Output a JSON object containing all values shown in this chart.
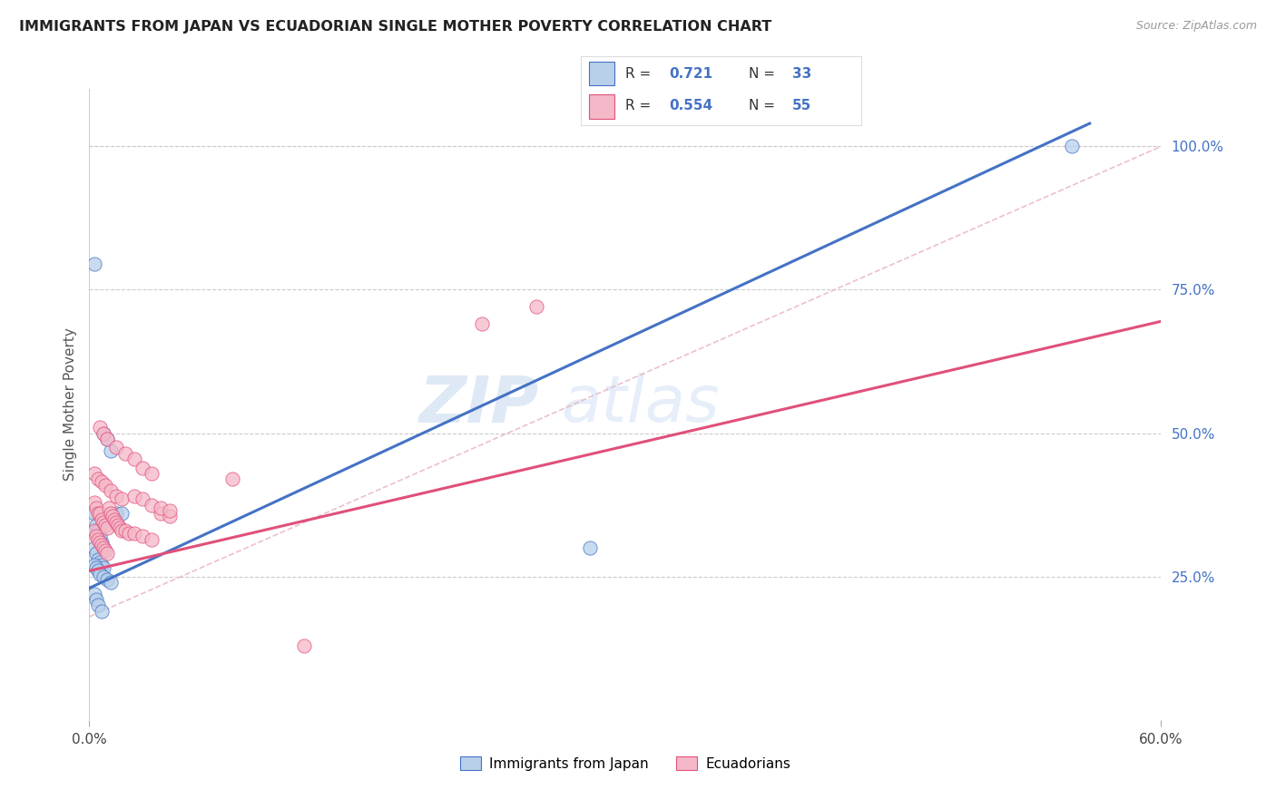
{
  "title": "IMMIGRANTS FROM JAPAN VS ECUADORIAN SINGLE MOTHER POVERTY CORRELATION CHART",
  "source": "Source: ZipAtlas.com",
  "ylabel": "Single Mother Poverty",
  "legend_label1": "Immigrants from Japan",
  "legend_label2": "Ecuadorians",
  "r1": "0.721",
  "n1": "33",
  "r2": "0.554",
  "n2": "55",
  "right_yticks": [
    "100.0%",
    "75.0%",
    "50.0%",
    "25.0%"
  ],
  "right_ytick_vals": [
    1.0,
    0.75,
    0.5,
    0.25
  ],
  "color_japan_fill": "#b8d0ea",
  "color_ecuador_fill": "#f5b8c8",
  "color_japan_line": "#4472c4",
  "color_ecuador_line": "#e0507a",
  "color_diag": "#e8b0c0",
  "xlim": [
    0.0,
    0.6
  ],
  "ylim": [
    0.0,
    1.1
  ],
  "japan_line_x": [
    0.0,
    0.56
  ],
  "japan_line_y": [
    0.23,
    1.04
  ],
  "ecuador_line_x": [
    0.0,
    0.6
  ],
  "ecuador_line_y": [
    0.26,
    0.695
  ],
  "diag_line_x": [
    0.0,
    0.6
  ],
  "diag_line_y": [
    0.18,
    1.0
  ],
  "japan_scatter_x": [
    0.003,
    0.004,
    0.005,
    0.006,
    0.007,
    0.008,
    0.003,
    0.005,
    0.007,
    0.008,
    0.003,
    0.004,
    0.005,
    0.006,
    0.008,
    0.01,
    0.012,
    0.015,
    0.018,
    0.003,
    0.004,
    0.005,
    0.006,
    0.008,
    0.01,
    0.012,
    0.003,
    0.004,
    0.005,
    0.007,
    0.28,
    0.55,
    0.003
  ],
  "japan_scatter_y": [
    0.3,
    0.29,
    0.28,
    0.275,
    0.27,
    0.265,
    0.33,
    0.32,
    0.31,
    0.3,
    0.36,
    0.34,
    0.33,
    0.32,
    0.5,
    0.49,
    0.47,
    0.36,
    0.36,
    0.27,
    0.265,
    0.26,
    0.255,
    0.25,
    0.245,
    0.24,
    0.22,
    0.21,
    0.2,
    0.19,
    0.3,
    1.0,
    0.795
  ],
  "ecuador_scatter_x": [
    0.003,
    0.004,
    0.005,
    0.006,
    0.007,
    0.008,
    0.009,
    0.01,
    0.003,
    0.004,
    0.005,
    0.006,
    0.007,
    0.008,
    0.009,
    0.01,
    0.011,
    0.012,
    0.013,
    0.014,
    0.015,
    0.016,
    0.017,
    0.018,
    0.02,
    0.022,
    0.025,
    0.03,
    0.035,
    0.04,
    0.045,
    0.003,
    0.005,
    0.007,
    0.009,
    0.012,
    0.015,
    0.018,
    0.025,
    0.03,
    0.035,
    0.04,
    0.045,
    0.22,
    0.25,
    0.006,
    0.008,
    0.01,
    0.015,
    0.02,
    0.025,
    0.03,
    0.035,
    0.08,
    0.12
  ],
  "ecuador_scatter_y": [
    0.33,
    0.32,
    0.315,
    0.31,
    0.305,
    0.3,
    0.295,
    0.29,
    0.38,
    0.37,
    0.36,
    0.36,
    0.35,
    0.345,
    0.34,
    0.335,
    0.37,
    0.36,
    0.355,
    0.35,
    0.345,
    0.34,
    0.335,
    0.33,
    0.33,
    0.325,
    0.325,
    0.32,
    0.315,
    0.36,
    0.355,
    0.43,
    0.42,
    0.415,
    0.41,
    0.4,
    0.39,
    0.385,
    0.39,
    0.385,
    0.375,
    0.37,
    0.365,
    0.69,
    0.72,
    0.51,
    0.5,
    0.49,
    0.475,
    0.465,
    0.455,
    0.44,
    0.43,
    0.42,
    0.13
  ]
}
